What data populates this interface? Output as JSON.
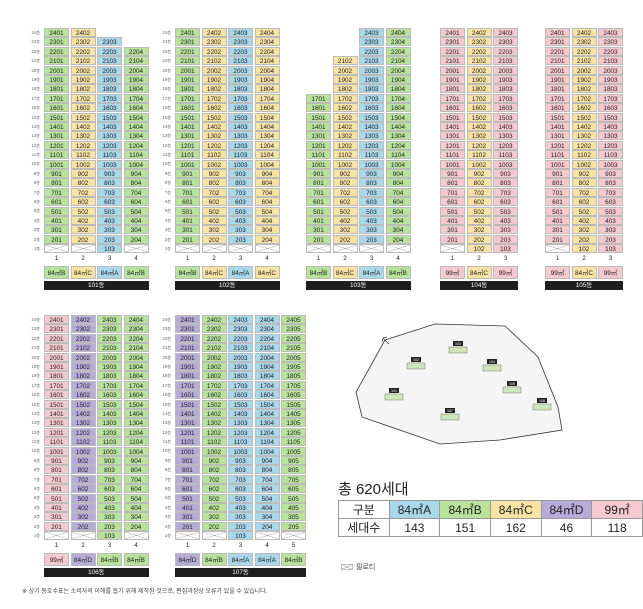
{
  "colors": {
    "A84": "#a8d8ec",
    "B84": "#b7e39b",
    "C84": "#f9e3a3",
    "D84": "#b6abd9",
    "m99": "#f6c8cf",
    "bar": "#1e1e1e"
  },
  "floor_labels": [
    "24층",
    "23층",
    "22층",
    "21층",
    "20층",
    "19층",
    "18층",
    "17층",
    "16층",
    "15층",
    "14층",
    "13층",
    "12층",
    "11층",
    "10층",
    "9층",
    "8층",
    "7층",
    "6층",
    "5층",
    "4층",
    "3층",
    "2층",
    "1층"
  ],
  "buildings": [
    {
      "id": "101",
      "label": "101동",
      "lines": [
        "1",
        "2",
        "3",
        "4"
      ],
      "types": [
        "84㎡B",
        "84㎡C",
        "84㎡A",
        "84㎡B"
      ],
      "typekeys": [
        "B84",
        "C84",
        "A84",
        "B84"
      ],
      "top": [
        24,
        24,
        23,
        22
      ],
      "piloti": [
        1,
        1,
        0,
        1
      ]
    },
    {
      "id": "102",
      "label": "102동",
      "lines": [
        "1",
        "2",
        "3",
        "4"
      ],
      "types": [
        "84㎡B",
        "84㎡C",
        "84㎡A",
        "84㎡C"
      ],
      "typekeys": [
        "B84",
        "C84",
        "A84",
        "C84"
      ],
      "top": [
        24,
        24,
        24,
        24
      ],
      "piloti": [
        1,
        1,
        1,
        1
      ]
    },
    {
      "id": "103",
      "label": "103동",
      "lines": [
        "1",
        "2",
        "3",
        "4"
      ],
      "types": [
        "84㎡B",
        "84㎡C",
        "84㎡A",
        "84㎡B"
      ],
      "typekeys": [
        "B84",
        "C84",
        "A84",
        "B84"
      ],
      "top": [
        17,
        21,
        24,
        24
      ],
      "piloti": [
        1,
        1,
        1,
        1
      ]
    },
    {
      "id": "104",
      "label": "104동",
      "lines": [
        "1",
        "2",
        "3"
      ],
      "types": [
        "99㎡",
        "84㎡C",
        "99㎡"
      ],
      "typekeys": [
        "m99",
        "C84",
        "m99"
      ],
      "top": [
        24,
        24,
        24
      ],
      "piloti": [
        1,
        0,
        0
      ]
    },
    {
      "id": "105",
      "label": "105동",
      "lines": [
        "1",
        "2",
        "3"
      ],
      "types": [
        "99㎡",
        "84㎡C",
        "99㎡"
      ],
      "typekeys": [
        "m99",
        "C84",
        "m99"
      ],
      "top": [
        24,
        24,
        24
      ],
      "piloti": [
        1,
        0,
        0
      ]
    },
    {
      "id": "106",
      "label": "106동",
      "lines": [
        "1",
        "2",
        "3",
        "4"
      ],
      "types": [
        "99㎡",
        "84㎡D",
        "84㎡B",
        "84㎡B"
      ],
      "typekeys": [
        "m99",
        "D84",
        "B84",
        "B84"
      ],
      "top": [
        24,
        24,
        24,
        24
      ],
      "piloti": [
        1,
        1,
        0,
        1
      ]
    },
    {
      "id": "107",
      "label": "107동",
      "lines": [
        "1",
        "2",
        "3",
        "4",
        "5"
      ],
      "types": [
        "84㎡D",
        "84㎡B",
        "84㎡A",
        "84㎡A",
        "84㎡B"
      ],
      "typekeys": [
        "D84",
        "B84",
        "A84",
        "A84",
        "B84"
      ],
      "top": [
        24,
        24,
        24,
        24,
        24
      ],
      "piloti": [
        1,
        1,
        0,
        1,
        1
      ]
    }
  ],
  "site_map": {
    "labels": [
      "101",
      "102",
      "103",
      "104",
      "105",
      "106",
      "107"
    ]
  },
  "summary": {
    "title": "총 620세대",
    "headers": [
      "구분",
      "84㎡A",
      "84㎡B",
      "84㎡C",
      "84㎡D",
      "99㎡"
    ],
    "row_label": "세대수",
    "values": [
      "143",
      "151",
      "162",
      "46",
      "118"
    ]
  },
  "legend": "필로티",
  "footnote": "※ 상기 동호수표는 소비자의 이해를 돕기 위해 제작된 것으로, 편집과정상 오류가 있을 수 있습니다."
}
